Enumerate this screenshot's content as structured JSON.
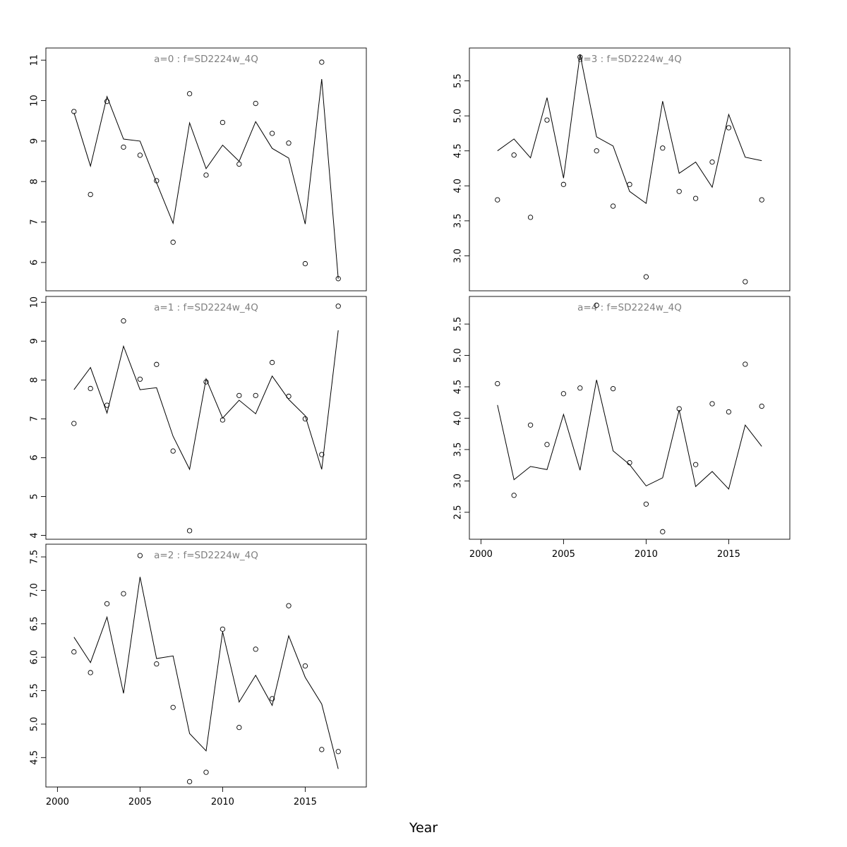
{
  "figure": {
    "xlabel": "Year"
  },
  "colors": {
    "title": "#808080",
    "line": "#000000",
    "points": "#000000",
    "frame": "#000000"
  },
  "chart_data": [
    {
      "type": "scatter",
      "title": "a=0  :  f=SD2224w_4Q",
      "xlim": [
        1999.3,
        2018.7
      ],
      "ylim": [
        5.3,
        11.3
      ],
      "yticks": [
        6,
        7,
        8,
        9,
        10,
        11
      ],
      "x": [
        2001,
        2002,
        2003,
        2004,
        2005,
        2006,
        2007,
        2008,
        2009,
        2010,
        2011,
        2012,
        2013,
        2014,
        2015,
        2016,
        2017
      ],
      "series": [
        {
          "kind": "points",
          "values": [
            9.73,
            7.68,
            9.98,
            8.85,
            8.65,
            8.02,
            6.5,
            10.17,
            8.16,
            9.46,
            8.43,
            9.93,
            9.19,
            8.95,
            5.97,
            10.95,
            5.6
          ]
        },
        {
          "kind": "line",
          "values": [
            9.7,
            8.38,
            10.1,
            9.05,
            9.0,
            7.97,
            6.97,
            9.45,
            8.32,
            8.9,
            8.5,
            9.48,
            8.82,
            8.58,
            6.95,
            10.53,
            5.6
          ]
        }
      ]
    },
    {
      "type": "scatter",
      "title": "a=1  :  f=SD2224w_4Q",
      "xlim": [
        1999.3,
        2018.7
      ],
      "ylim": [
        3.9,
        10.15
      ],
      "yticks": [
        4,
        5,
        6,
        7,
        8,
        9,
        10
      ],
      "x": [
        2001,
        2002,
        2003,
        2004,
        2005,
        2006,
        2007,
        2008,
        2009,
        2010,
        2011,
        2012,
        2013,
        2014,
        2015,
        2016,
        2017
      ],
      "series": [
        {
          "kind": "points",
          "values": [
            6.88,
            7.78,
            7.35,
            9.52,
            8.02,
            8.4,
            6.17,
            4.12,
            7.95,
            6.97,
            7.6,
            7.6,
            8.45,
            7.58,
            7.0,
            6.08,
            9.9
          ]
        },
        {
          "kind": "line",
          "values": [
            7.75,
            8.32,
            7.15,
            8.87,
            7.75,
            7.8,
            6.55,
            5.7,
            8.03,
            7.02,
            7.48,
            7.13,
            8.1,
            7.5,
            7.08,
            5.7,
            9.28
          ]
        }
      ]
    },
    {
      "type": "scatter",
      "title": "a=2  :  f=SD2224w_4Q",
      "xlim": [
        1999.3,
        2018.7
      ],
      "ylim": [
        4.06,
        7.69
      ],
      "yticks": [
        4.5,
        5.0,
        5.5,
        6.0,
        6.5,
        7.0,
        7.5
      ],
      "x": [
        2001,
        2002,
        2003,
        2004,
        2005,
        2006,
        2007,
        2008,
        2009,
        2010,
        2011,
        2012,
        2013,
        2014,
        2015,
        2016,
        2017
      ],
      "series": [
        {
          "kind": "points",
          "values": [
            6.08,
            5.77,
            6.8,
            6.95,
            7.52,
            5.9,
            5.25,
            4.14,
            4.28,
            6.42,
            4.95,
            6.12,
            5.38,
            6.77,
            5.87,
            4.62,
            4.59
          ]
        },
        {
          "kind": "line",
          "values": [
            6.3,
            5.92,
            6.6,
            5.46,
            7.2,
            5.98,
            6.02,
            4.86,
            4.6,
            6.38,
            5.33,
            5.73,
            5.28,
            6.32,
            5.7,
            5.3,
            4.33
          ]
        }
      ]
    },
    {
      "type": "scatter",
      "title": "a=3  :  f=SD2224w_4Q",
      "xlim": [
        1999.3,
        2018.7
      ],
      "ylim": [
        2.5,
        5.97
      ],
      "yticks": [
        3.0,
        3.5,
        4.0,
        4.5,
        5.0,
        5.5
      ],
      "x": [
        2001,
        2002,
        2003,
        2004,
        2005,
        2006,
        2007,
        2008,
        2009,
        2010,
        2011,
        2012,
        2013,
        2014,
        2015,
        2016,
        2017
      ],
      "series": [
        {
          "kind": "points",
          "values": [
            3.8,
            4.44,
            3.55,
            4.94,
            4.02,
            5.84,
            4.5,
            3.71,
            4.02,
            2.7,
            4.54,
            3.92,
            3.82,
            4.34,
            4.83,
            2.63,
            3.8
          ]
        },
        {
          "kind": "line",
          "values": [
            4.5,
            4.67,
            4.4,
            5.26,
            4.11,
            5.88,
            4.7,
            4.57,
            3.92,
            3.75,
            5.21,
            4.18,
            4.34,
            3.98,
            5.02,
            4.41,
            4.36
          ]
        }
      ]
    },
    {
      "type": "scatter",
      "title": "a=4  :  f=SD2224w_4Q",
      "xlim": [
        1999.3,
        2018.7
      ],
      "ylim": [
        2.07,
        5.94
      ],
      "yticks": [
        2.5,
        3.0,
        3.5,
        4.0,
        4.5,
        5.0,
        5.5
      ],
      "x": [
        2001,
        2002,
        2003,
        2004,
        2005,
        2006,
        2007,
        2008,
        2009,
        2010,
        2011,
        2012,
        2013,
        2014,
        2015,
        2016,
        2017
      ],
      "xticks": [
        2000,
        2005,
        2010,
        2015
      ],
      "series": [
        {
          "kind": "points",
          "values": [
            4.55,
            2.77,
            3.89,
            3.58,
            4.39,
            4.48,
            5.8,
            4.47,
            3.29,
            2.63,
            2.19,
            4.15,
            3.26,
            4.23,
            4.1,
            4.86,
            4.19
          ]
        },
        {
          "kind": "line",
          "values": [
            4.21,
            3.02,
            3.23,
            3.18,
            4.06,
            3.17,
            4.61,
            3.48,
            3.26,
            2.92,
            3.05,
            4.13,
            2.91,
            3.15,
            2.87,
            3.89,
            3.55
          ]
        }
      ]
    }
  ],
  "bottom_axes": {
    "left": {
      "xticks": [
        2000,
        2005,
        2010,
        2015
      ]
    }
  }
}
